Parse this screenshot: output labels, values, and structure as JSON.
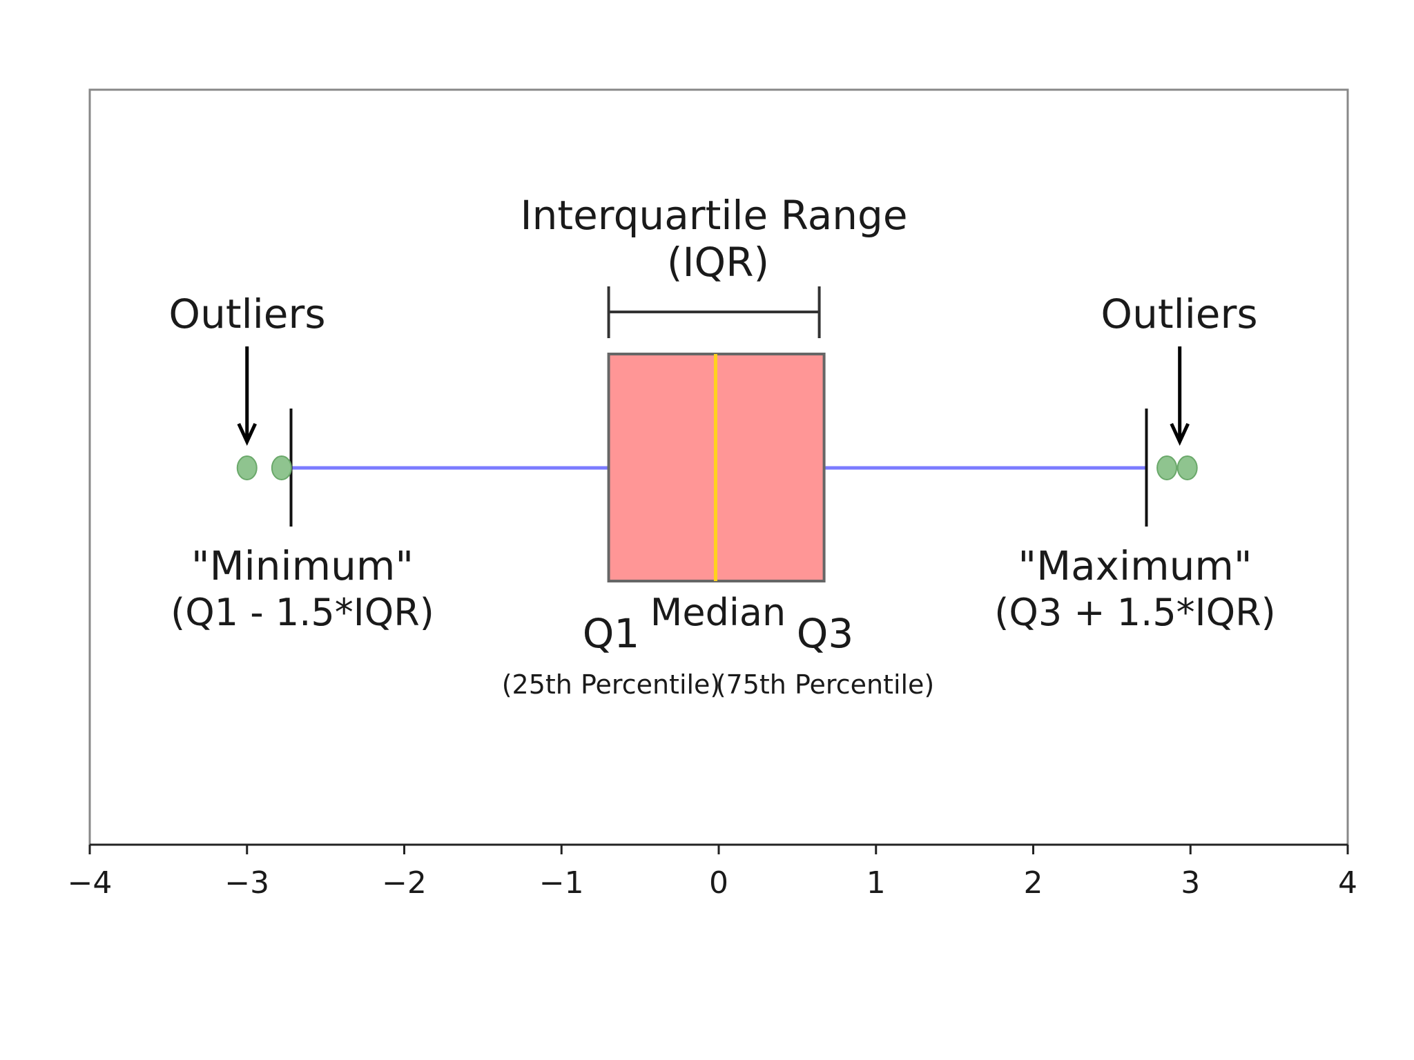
{
  "chart_data": {
    "type": "box",
    "title": "",
    "xlabel": "",
    "ylabel": "",
    "xlim": [
      -4,
      4
    ],
    "x_ticks": [
      -4,
      -3,
      -2,
      -1,
      0,
      1,
      2,
      3,
      4
    ],
    "x_tick_labels": [
      "−4",
      "−3",
      "−2",
      "−1",
      "0",
      "1",
      "2",
      "3",
      "4"
    ],
    "orientation": "horizontal",
    "box": {
      "whisker_low": -2.72,
      "q1": -0.7,
      "median": -0.02,
      "q3": 0.67,
      "whisker_high": 2.72
    },
    "outliers": [
      -3.0,
      -2.78,
      2.85,
      2.98
    ],
    "colors": {
      "box_fill": "#ff9696",
      "box_edge": "#666666",
      "median_line": "#ffd21e",
      "whisker_line": "#7b7bff",
      "outlier_fill": "#8fc48f",
      "outlier_edge": "#6aa86a",
      "cap_line": "#111111"
    },
    "annotations": {
      "iqr_title": "Interquartile Range",
      "iqr_abbrev": "(IQR)",
      "outliers_left": "Outliers",
      "outliers_right": "Outliers",
      "minimum_title": "\"Minimum\"",
      "minimum_formula": "(Q1 - 1.5*IQR)",
      "maximum_title": "\"Maximum\"",
      "maximum_formula": "(Q3 + 1.5*IQR)",
      "median": "Median",
      "q1": "Q1",
      "q1_desc": "(25th Percentile)",
      "q3": "Q3",
      "q3_desc": "(75th Percentile)"
    }
  }
}
